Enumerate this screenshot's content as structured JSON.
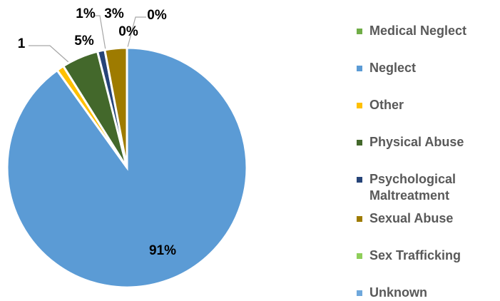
{
  "chart_data": {
    "type": "pie",
    "categories": [
      "Medical Neglect",
      "Neglect",
      "Other",
      "Physical Abuse",
      "Psychological Maltreatment",
      "Sexual Abuse",
      "Sex Trafficking",
      "Unknown"
    ],
    "values": [
      0,
      91,
      1,
      5,
      1,
      3,
      0,
      0
    ],
    "value_labels": [
      "0%",
      "91%",
      "1",
      "5%",
      "1%",
      "3%",
      "0%",
      null
    ],
    "colors": [
      "#70ad47",
      "#5b9bd5",
      "#ffc000",
      "#43682b",
      "#264478",
      "#9e7b00",
      "#8fce5a",
      "#6fa8dc"
    ],
    "legend": "right"
  }
}
